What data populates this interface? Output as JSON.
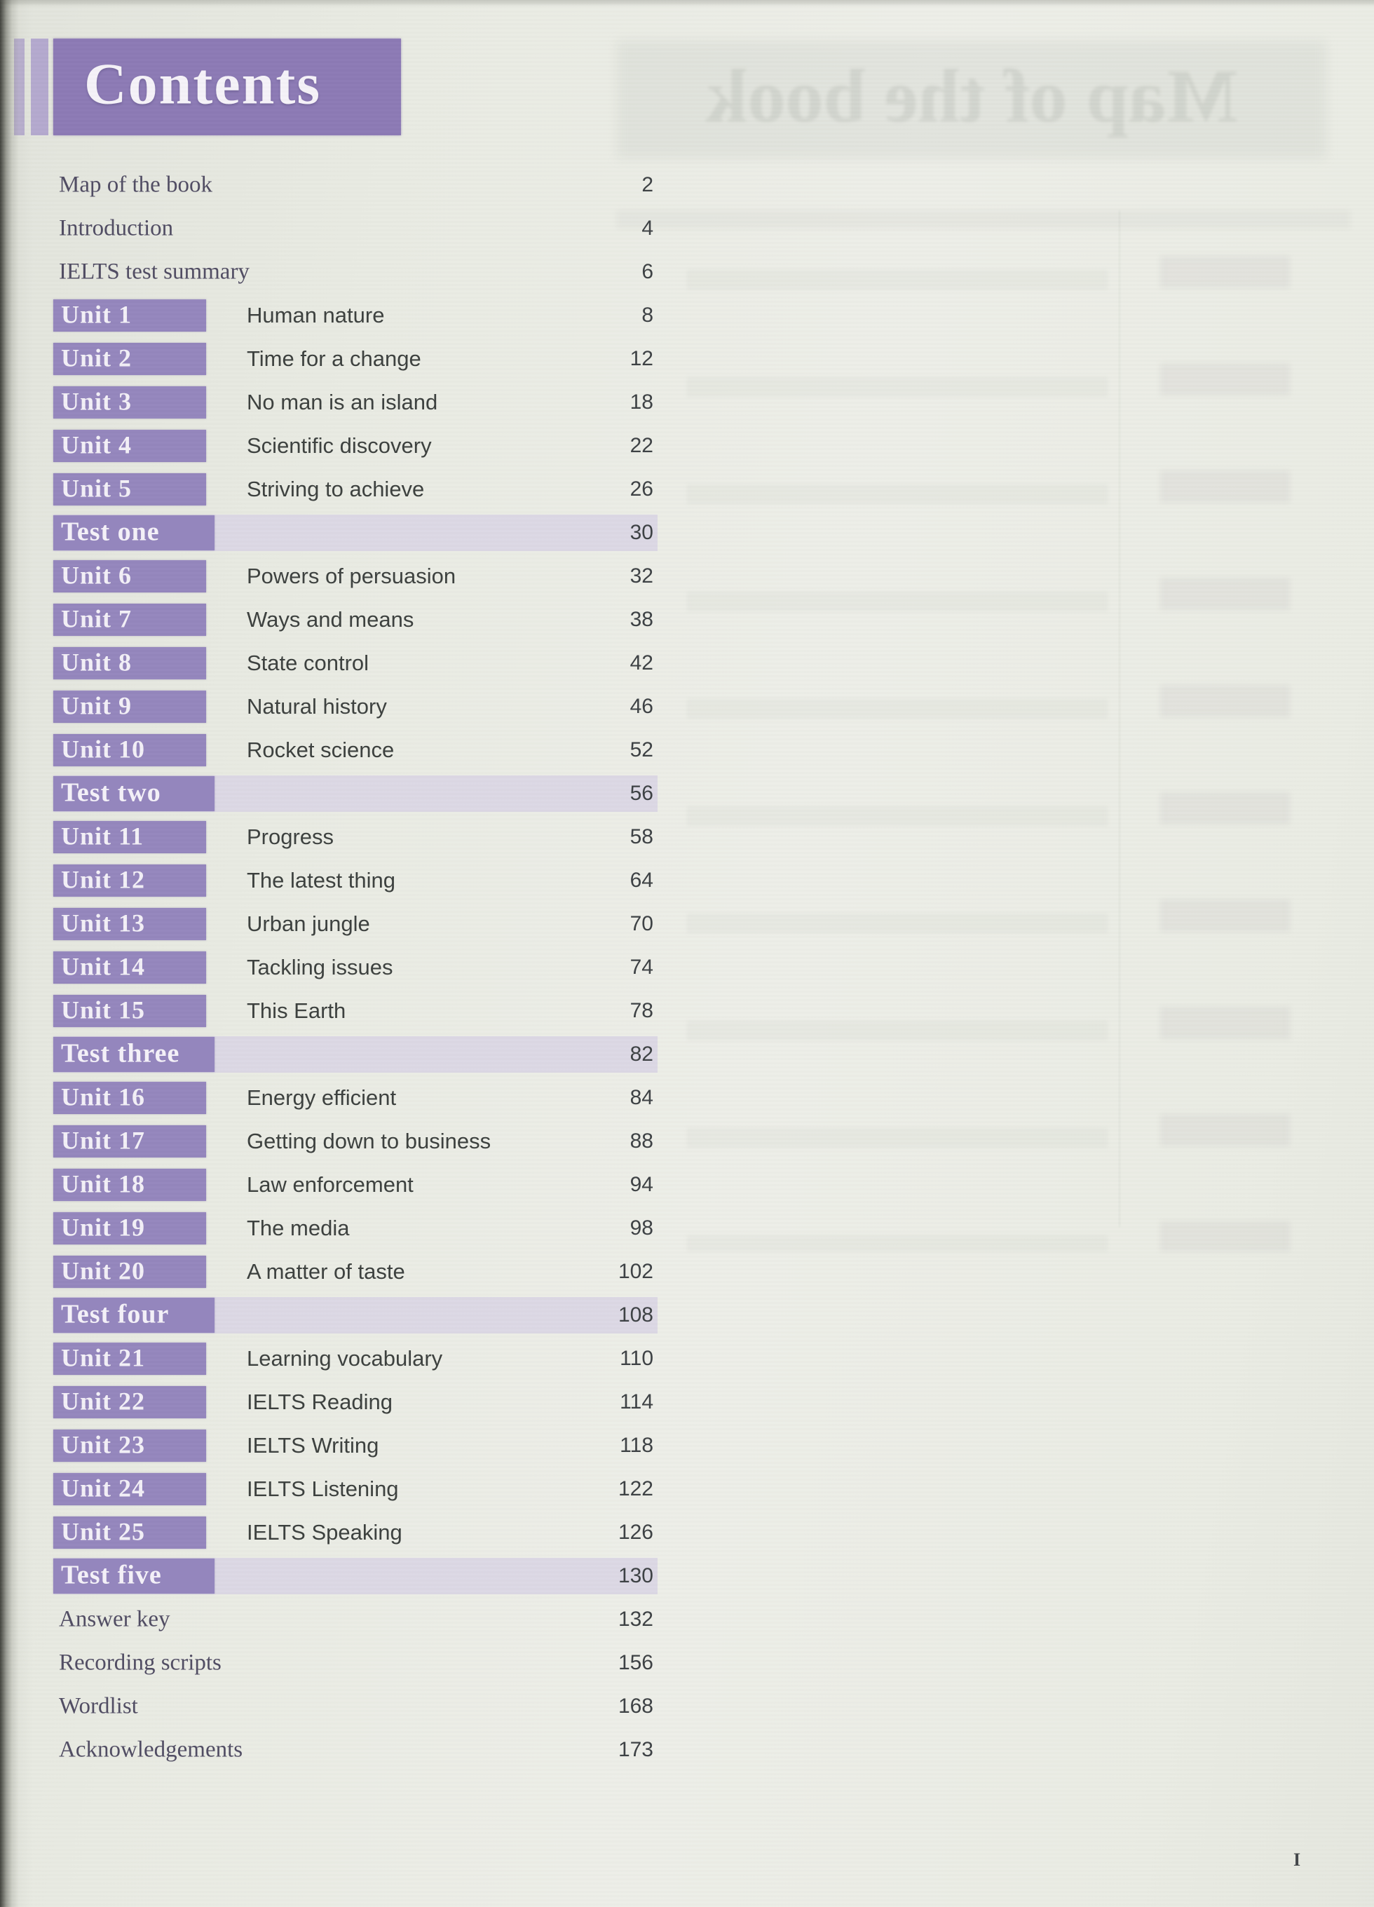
{
  "page": {
    "title": "Contents",
    "folio": "I"
  },
  "colors": {
    "header_purple": "#8c7ab5",
    "unit_box_purple": "#9486bd",
    "accent_bar_lavender": "#b4a9ce",
    "test_band_lavender": "#dcd8e5",
    "paper": "#e9ebe3",
    "text_dark": "#3e4245"
  },
  "ghost": {
    "banner_text": "Map of the book"
  },
  "toc": {
    "entries": [
      {
        "type": "plain",
        "label": "Map of the book",
        "title": "",
        "page": "2"
      },
      {
        "type": "plain",
        "label": "Introduction",
        "title": "",
        "page": "4"
      },
      {
        "type": "plain",
        "label": "IELTS test summary",
        "title": "",
        "page": "6"
      },
      {
        "type": "unit",
        "label": "Unit 1",
        "title": "Human nature",
        "page": "8"
      },
      {
        "type": "unit",
        "label": "Unit 2",
        "title": "Time for a change",
        "page": "12"
      },
      {
        "type": "unit",
        "label": "Unit 3",
        "title": "No man is an island",
        "page": "18"
      },
      {
        "type": "unit",
        "label": "Unit 4",
        "title": "Scientific discovery",
        "page": "22"
      },
      {
        "type": "unit",
        "label": "Unit 5",
        "title": "Striving to achieve",
        "page": "26"
      },
      {
        "type": "test",
        "label": "Test one",
        "title": "",
        "page": "30"
      },
      {
        "type": "unit",
        "label": "Unit 6",
        "title": "Powers of persuasion",
        "page": "32"
      },
      {
        "type": "unit",
        "label": "Unit 7",
        "title": "Ways and means",
        "page": "38"
      },
      {
        "type": "unit",
        "label": "Unit 8",
        "title": "State control",
        "page": "42"
      },
      {
        "type": "unit",
        "label": "Unit 9",
        "title": "Natural history",
        "page": "46"
      },
      {
        "type": "unit",
        "label": "Unit 10",
        "title": "Rocket science",
        "page": "52"
      },
      {
        "type": "test",
        "label": "Test two",
        "title": "",
        "page": "56"
      },
      {
        "type": "unit",
        "label": "Unit 11",
        "title": "Progress",
        "page": "58"
      },
      {
        "type": "unit",
        "label": "Unit 12",
        "title": "The latest thing",
        "page": "64"
      },
      {
        "type": "unit",
        "label": "Unit 13",
        "title": "Urban jungle",
        "page": "70"
      },
      {
        "type": "unit",
        "label": "Unit 14",
        "title": "Tackling issues",
        "page": "74"
      },
      {
        "type": "unit",
        "label": "Unit 15",
        "title": "This Earth",
        "page": "78"
      },
      {
        "type": "test",
        "label": "Test three",
        "title": "",
        "page": "82"
      },
      {
        "type": "unit",
        "label": "Unit 16",
        "title": "Energy efficient",
        "page": "84"
      },
      {
        "type": "unit",
        "label": "Unit 17",
        "title": "Getting down to business",
        "page": "88"
      },
      {
        "type": "unit",
        "label": "Unit 18",
        "title": "Law enforcement",
        "page": "94"
      },
      {
        "type": "unit",
        "label": "Unit 19",
        "title": "The media",
        "page": "98"
      },
      {
        "type": "unit",
        "label": "Unit 20",
        "title": "A matter of taste",
        "page": "102"
      },
      {
        "type": "test",
        "label": "Test four",
        "title": "",
        "page": "108"
      },
      {
        "type": "unit",
        "label": "Unit 21",
        "title": "Learning vocabulary",
        "page": "110"
      },
      {
        "type": "unit",
        "label": "Unit 22",
        "title": "IELTS Reading",
        "page": "114"
      },
      {
        "type": "unit",
        "label": "Unit 23",
        "title": "IELTS Writing",
        "page": "118"
      },
      {
        "type": "unit",
        "label": "Unit 24",
        "title": "IELTS Listening",
        "page": "122"
      },
      {
        "type": "unit",
        "label": "Unit 25",
        "title": "IELTS Speaking",
        "page": "126"
      },
      {
        "type": "test",
        "label": "Test five",
        "title": "",
        "page": "130"
      },
      {
        "type": "plain",
        "label": "Answer key",
        "title": "",
        "page": "132"
      },
      {
        "type": "plain",
        "label": "Recording scripts",
        "title": "",
        "page": "156"
      },
      {
        "type": "plain",
        "label": "Wordlist",
        "title": "",
        "page": "168"
      },
      {
        "type": "plain",
        "label": "Acknowledgements",
        "title": "",
        "page": "173"
      }
    ]
  }
}
